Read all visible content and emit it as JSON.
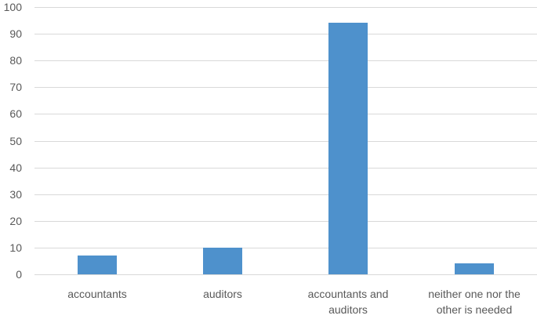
{
  "chart_data": {
    "type": "bar",
    "title": "",
    "xlabel": "",
    "ylabel": "",
    "categories": [
      "accountants",
      "auditors",
      "accountants and auditors",
      "neither one nor the other is needed"
    ],
    "category_lines": [
      [
        "accountants"
      ],
      [
        "auditors"
      ],
      [
        "accountants and",
        "auditors"
      ],
      [
        "neither one nor the",
        "other is needed"
      ]
    ],
    "values": [
      7,
      10,
      94,
      4
    ],
    "ylim": [
      0,
      100
    ],
    "yticks": [
      "0",
      "10",
      "20",
      "30",
      "40",
      "50",
      "60",
      "70",
      "80",
      "90",
      "100"
    ],
    "grid": true,
    "legend": "none",
    "bar_color": "#4e91cc"
  }
}
